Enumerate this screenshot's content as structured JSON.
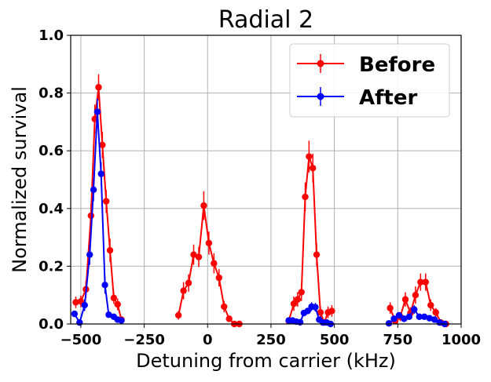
{
  "chart_data": {
    "type": "line",
    "title": "Radial 2",
    "xlabel": "Detuning from carrier (kHz)",
    "ylabel": "Normalized survival",
    "xlim": [
      -540,
      1000
    ],
    "ylim": [
      0.0,
      1.0
    ],
    "xticks": [
      -500,
      -250,
      0,
      250,
      500,
      750,
      1000
    ],
    "yticks": [
      0.0,
      0.2,
      0.4,
      0.6,
      0.8,
      1.0
    ],
    "grid": true,
    "legend_position": "top-right",
    "series": [
      {
        "name": "Before",
        "color": "#ff0000",
        "segments": [
          {
            "x": [
              -520,
              -500,
              -480,
              -460,
              -445,
              -430,
              -415,
              -400,
              -385,
              -370,
              -355,
              -340
            ],
            "y": [
              0.075,
              0.078,
              0.12,
              0.375,
              0.71,
              0.82,
              0.62,
              0.425,
              0.255,
              0.09,
              0.068,
              0.015
            ],
            "err": [
              0.02,
              0.02,
              0.03,
              0.04,
              0.05,
              0.045,
              0.045,
              0.04,
              0.04,
              0.02,
              0.02,
              0.01
            ]
          },
          {
            "x": [
              -115,
              -95,
              -75,
              -55,
              -35,
              -15,
              5,
              25,
              45,
              65,
              85,
              105,
              125
            ],
            "y": [
              0.03,
              0.115,
              0.142,
              0.24,
              0.232,
              0.41,
              0.28,
              0.21,
              0.16,
              0.06,
              0.018,
              0.0,
              0.0
            ],
            "err": [
              0.015,
              0.03,
              0.03,
              0.035,
              0.035,
              0.05,
              0.04,
              0.035,
              0.03,
              0.02,
              0.01,
              0.0,
              0.0
            ]
          },
          {
            "x": [
              320,
              340,
              355,
              370,
              385,
              400,
              415,
              430,
              445,
              460,
              475,
              490
            ],
            "y": [
              0.01,
              0.07,
              0.085,
              0.11,
              0.44,
              0.58,
              0.54,
              0.24,
              0.04,
              0.005,
              0.04,
              0.045
            ],
            "err": [
              0.01,
              0.025,
              0.025,
              0.03,
              0.05,
              0.055,
              0.05,
              0.04,
              0.02,
              0.01,
              0.02,
              0.02
            ]
          },
          {
            "x": [
              720,
              740,
              760,
              780,
              800,
              820,
              840,
              860,
              880,
              900,
              920,
              940
            ],
            "y": [
              0.055,
              0.01,
              0.025,
              0.085,
              0.038,
              0.1,
              0.145,
              0.145,
              0.065,
              0.04,
              0.005,
              0.0
            ],
            "err": [
              0.02,
              0.01,
              0.015,
              0.025,
              0.02,
              0.03,
              0.03,
              0.03,
              0.02,
              0.015,
              0.005,
              0.0
            ]
          }
        ]
      },
      {
        "name": "After",
        "color": "#0000ff",
        "segments": [
          {
            "x": [
              -525,
              -505,
              -485,
              -465,
              -450,
              -435,
              -420,
              -405,
              -390,
              -370,
              -355,
              -340
            ],
            "y": [
              0.035,
              0.005,
              0.065,
              0.24,
              0.465,
              0.735,
              0.52,
              0.135,
              0.032,
              0.025,
              0.015,
              0.012
            ],
            "err": [
              0.01,
              0.005,
              0.02,
              0.035,
              0.04,
              0.045,
              0.04,
              0.03,
              0.01,
              0.01,
              0.01,
              0.005
            ]
          },
          {
            "x": [
              320,
              335,
              350,
              365,
              380,
              395,
              410,
              425,
              440,
              455,
              470,
              485
            ],
            "y": [
              0.012,
              0.012,
              0.008,
              0.006,
              0.038,
              0.045,
              0.06,
              0.058,
              0.015,
              0.005,
              0.005,
              0.0
            ],
            "err": [
              0.005,
              0.005,
              0.005,
              0.005,
              0.01,
              0.01,
              0.015,
              0.015,
              0.01,
              0.005,
              0.005,
              0.0
            ]
          },
          {
            "x": [
              715,
              735,
              755,
              775,
              795,
              815,
              835,
              855,
              875,
              895,
              915,
              935
            ],
            "y": [
              0.002,
              0.018,
              0.03,
              0.018,
              0.025,
              0.05,
              0.025,
              0.025,
              0.02,
              0.015,
              0.005,
              0.0
            ],
            "err": [
              0.005,
              0.01,
              0.01,
              0.01,
              0.01,
              0.015,
              0.01,
              0.01,
              0.01,
              0.01,
              0.005,
              0.0
            ]
          }
        ]
      }
    ]
  }
}
